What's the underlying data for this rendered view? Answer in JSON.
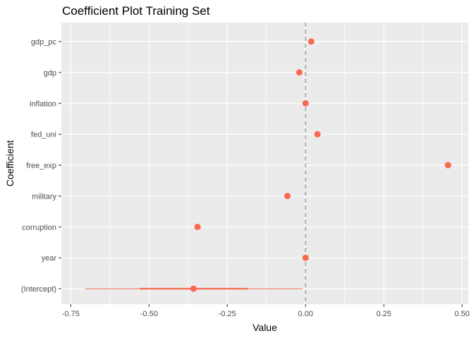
{
  "chart_data": {
    "type": "scatter",
    "title": "Coefficient Plot Training Set",
    "xlabel": "Value",
    "ylabel": "Coefficient",
    "xlim": [
      -0.78,
      0.52
    ],
    "x_ticks": [
      -0.75,
      -0.5,
      -0.25,
      0.0,
      0.25,
      0.5
    ],
    "x_tick_labels": [
      "-0.75",
      "-0.50",
      "-0.25",
      "0.00",
      "0.25",
      "0.50"
    ],
    "categories": [
      "gdp_pc",
      "gdp",
      "inflation",
      "fed_uni",
      "free_exp",
      "military",
      "corruption",
      "year",
      "(Intercept)"
    ],
    "series": [
      {
        "values": [
          0.018,
          -0.02,
          0.0,
          0.038,
          0.455,
          -0.058,
          -0.345,
          0.0,
          -0.358
        ],
        "inner_interval": [
          null,
          null,
          null,
          null,
          null,
          null,
          null,
          null,
          [
            -0.53,
            -0.185
          ]
        ],
        "outer_interval": [
          null,
          null,
          null,
          null,
          null,
          null,
          null,
          null,
          [
            -0.705,
            -0.01
          ]
        ]
      }
    ],
    "reference_line": 0,
    "grid": true,
    "colors": {
      "panel": "#ebebeb",
      "grid": "#ffffff",
      "point": "#f8694f",
      "reference_line": "#b3b3b3"
    }
  }
}
